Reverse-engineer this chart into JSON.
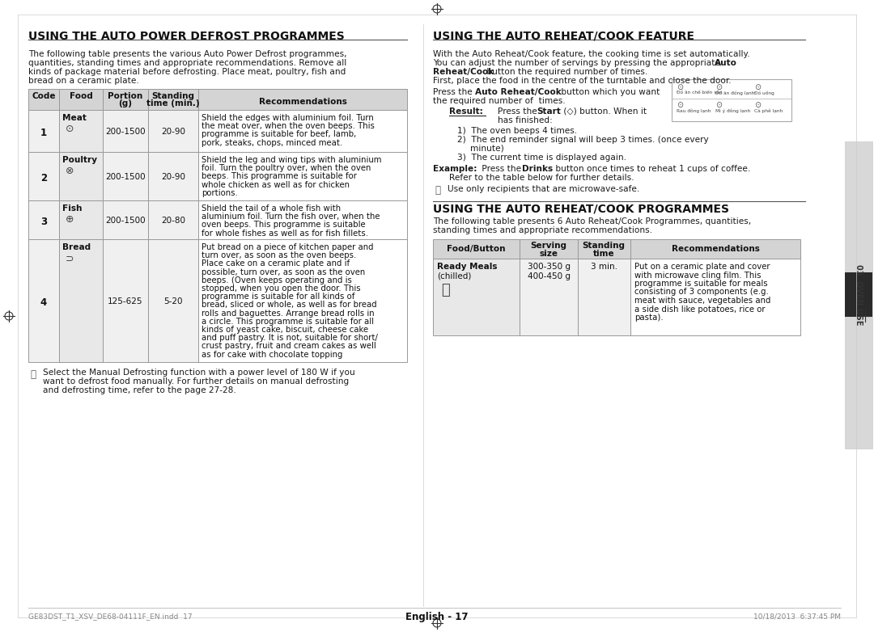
{
  "page_bg": "#ffffff",
  "left_title": "USING THE AUTO POWER DEFROST PROGRAMMES",
  "right_title": "USING THE AUTO REHEAT/COOK FEATURE",
  "bottom_right_title": "USING THE AUTO REHEAT/COOK PROGRAMMES",
  "defrost_intro": [
    "The following table presents the various Auto Power Defrost programmes,",
    "quantities, standing times and appropriate recommendations. Remove all",
    "kinds of package material before defrosting. Place meat, poultry, fish and",
    "bread on a ceramic plate."
  ],
  "defrost_headers": [
    "Code",
    "Food",
    "Portion\n(g)",
    "Standing\ntime (min.)",
    "Recommendations"
  ],
  "defrost_rows": [
    {
      "code": "1",
      "food": "Meat",
      "portion": "200-1500",
      "standing": "20-90",
      "rec": [
        "Shield the edges with aluminium foil. Turn",
        "the meat over, when the oven beeps. This",
        "programme is suitable for beef, lamb,",
        "pork, steaks, chops, minced meat."
      ]
    },
    {
      "code": "2",
      "food": "Poultry",
      "portion": "200-1500",
      "standing": "20-90",
      "rec": [
        "Shield the leg and wing tips with aluminium",
        "foil. Turn the poultry over, when the oven",
        "beeps. This programme is suitable for",
        "whole chicken as well as for chicken",
        "portions."
      ]
    },
    {
      "code": "3",
      "food": "Fish",
      "portion": "200-1500",
      "standing": "20-80",
      "rec": [
        "Shield the tail of a whole fish with",
        "aluminium foil. Turn the fish over, when the",
        "oven beeps. This programme is suitable",
        "for whole fishes as well as for fish fillets."
      ]
    },
    {
      "code": "4",
      "food": "Bread",
      "portion": "125-625",
      "standing": "5-20",
      "rec": [
        "Put bread on a piece of kitchen paper and",
        "turn over, as soon as the oven beeps.",
        "Place cake on a ceramic plate and if",
        "possible, turn over, as soon as the oven",
        "beeps. (Oven keeps operating and is",
        "stopped, when you open the door. This",
        "programme is suitable for all kinds of",
        "bread, sliced or whole, as well as for bread",
        "rolls and baguettes. Arrange bread rolls in",
        "a circle. This programme is suitable for all",
        "kinds of yeast cake, biscuit, cheese cake",
        "and puff pastry. It is not, suitable for short/",
        "crust pastry, fruit and cream cakes as well",
        "as for cake with chocolate topping"
      ]
    }
  ],
  "defrost_note": [
    "Select the Manual Defrosting function with a power level of 180 W if you",
    "want to defrost food manually. For further details on manual defrosting",
    "and defrosting time, refer to the page 27-28."
  ],
  "reheat_intro": [
    "With the Auto Reheat/Cook feature, the cooking time is set automatically.",
    "You can adjust the number of servings by pressing the appropriate #Auto#",
    "#Reheat/Cook# button the required number of times.",
    "First, place the food in the centre of the turntable and close the door."
  ],
  "reheat_press": "Press the #Auto Reheat/Cook# button which you want",
  "reheat_press2": "the required number of times.",
  "result_items": [
    "The oven beeps 4 times.",
    "The end reminder signal will beep 3 times. (once every",
    "minute)",
    "The current time is displayed again."
  ],
  "example_line1": "#Example:# Press the #Drinks# button once times to reheat 1 cups of coffee.",
  "example_line2": "Refer to the table below for further details.",
  "note2": "Use only recipients that are microwave-safe.",
  "reheat_prog_intro": [
    "The following table presents 6 Auto Reheat/Cook Programmes, quantities,",
    "standing times and appropriate recommendations."
  ],
  "reheat_headers": [
    "Food/Button",
    "Serving\nsize",
    "Standing\ntime",
    "Recommendations"
  ],
  "reheat_row": {
    "food_line1": "Ready Meals",
    "food_line2": "(chilled)",
    "serving": [
      "300-350 g",
      "400-450 g"
    ],
    "standing": "3 min.",
    "rec": [
      "Put on a ceramic plate and cover",
      "with microwave cling film. This",
      "programme is suitable for meals",
      "consisting of 3 components (e.g.",
      "meat with sauce, vegetables and",
      "a side dish like potatoes, rice or",
      "pasta)."
    ]
  },
  "footer_text": "English - 17",
  "footer_file": "GE83DST_T1_XSV_DE68-04111F_EN.indd  17",
  "footer_date": "10/18/2013  6:37:45 PM",
  "table_header_bg": "#d4d4d4",
  "table_border": "#999999",
  "cell_bg_left": "#f0f0f0",
  "cell_bg_food": "#e8e8e8",
  "cell_bg_white": "#ffffff"
}
